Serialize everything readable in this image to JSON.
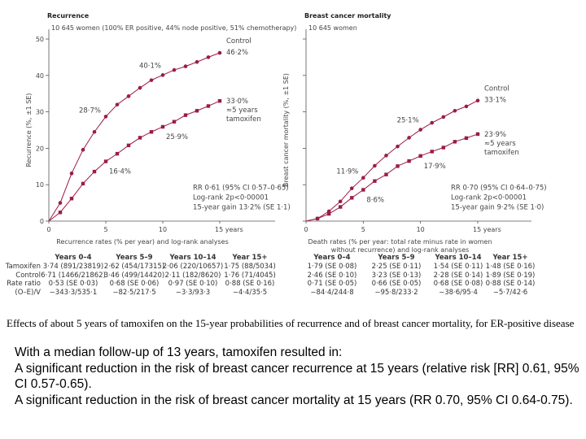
{
  "colors": {
    "series": "#9b1b4a",
    "axis": "#555555"
  },
  "chart_data": [
    {
      "type": "line",
      "title": "Recurrence",
      "subtitle": "10 645 women (100% ER positive, 44% node positive, 51% chemotherapy)",
      "xlabel": "Recurrence rates (% per year) and log-rank analyses",
      "ylabel": "Recurrence (%, ±1 SE)",
      "xlim": [
        0,
        15
      ],
      "ylim": [
        0,
        50
      ],
      "xticks": [
        "0",
        "5",
        "10",
        "15 years"
      ],
      "yticks": [
        "0",
        "10",
        "20",
        "30",
        "40",
        "50"
      ],
      "x": [
        0,
        1,
        2,
        3,
        4,
        5,
        6,
        7,
        8,
        9,
        10,
        11,
        12,
        13,
        14,
        15
      ],
      "series": [
        {
          "name": "Control",
          "values": [
            0,
            5.0,
            13.1,
            19.6,
            24.5,
            28.7,
            32.0,
            34.3,
            36.6,
            38.7,
            40.1,
            41.5,
            42.5,
            43.7,
            45.0,
            46.2
          ]
        },
        {
          "name": "≈5 years tamoxifen",
          "values": [
            0,
            2.4,
            6.2,
            10.3,
            13.6,
            16.4,
            18.5,
            20.8,
            22.9,
            24.5,
            25.9,
            27.3,
            29.1,
            30.3,
            31.6,
            33.0
          ]
        }
      ],
      "labels": {
        "control_name": "Control",
        "control_end": "46·2%",
        "ctrl5": "28·7%",
        "ctrl10": "40·1%",
        "tam_end": "33·0%",
        "tam_name1": "≈5 years",
        "tam_name2": "tamoxifen",
        "tam5": "16·4%",
        "tam10": "25·9%"
      },
      "stats": [
        "RR 0·61 (95% CI 0·57–0·65)",
        "Log-rank 2p<0·00001",
        "15-year gain 13·2% (SE 1·1)"
      ]
    },
    {
      "type": "line",
      "title": "Breast cancer mortality",
      "subtitle": "10 645 women",
      "xlabel": "Death rates (% per year: total rate minus rate in women",
      "xlabel2": "without recurrence) and log-rank analyses",
      "ylabel": "Breast cancer mortality (%, ±1 SE)",
      "xlim": [
        0,
        15
      ],
      "ylim": [
        0,
        50
      ],
      "xticks": [
        "0",
        "5",
        "10",
        "15 years"
      ],
      "yticks": [
        "",
        "",
        "",
        "",
        "",
        ""
      ],
      "x": [
        0,
        1,
        2,
        3,
        4,
        5,
        6,
        7,
        8,
        9,
        10,
        11,
        12,
        13,
        14,
        15
      ],
      "series": [
        {
          "name": "Control",
          "values": [
            0,
            0.7,
            2.7,
            5.4,
            9.0,
            11.9,
            15.2,
            18.0,
            20.5,
            22.9,
            25.1,
            27.0,
            28.6,
            30.3,
            31.5,
            33.1
          ]
        },
        {
          "name": "≈5 years tamoxifen",
          "values": [
            0,
            0.7,
            2.0,
            3.9,
            6.4,
            8.6,
            11.0,
            12.8,
            15.1,
            16.5,
            17.9,
            19.1,
            20.2,
            21.8,
            22.8,
            23.9
          ]
        }
      ],
      "labels": {
        "control_name": "Control",
        "control_end": "33·1%",
        "ctrl5": "11·9%",
        "ctrl10": "25·1%",
        "tam_end": "23·9%",
        "tam_name1": "≈5 years",
        "tam_name2": "tamoxifen",
        "tam5": "8·6%",
        "tam10": "17·9%"
      },
      "stats": [
        "RR 0·70 (95% CI 0·64–0·75)",
        "Log-rank 2p<0·00001",
        "15-year gain 9·2% (SE 1·0)"
      ]
    }
  ],
  "table_left": {
    "headers": [
      "Years 0–4",
      "Years 5–9",
      "Years 10–14",
      "Year 15+"
    ],
    "row_labels": [
      "Tamoxifen",
      "Control",
      "Rate ratio",
      "(O–E)/V"
    ],
    "rows": [
      [
        "3·74 (891/23819)",
        "2·62 (454/17315)",
        "2·06 (220/10657)",
        "1·75 (88/5034)"
      ],
      [
        "6·71 (1466/21862)",
        "3·46 (499/14420)",
        "2·11 (182/8620)",
        "1·76 (71/4045)"
      ],
      [
        "0·53 (SE 0·03)",
        "0·68 (SE 0·06)",
        "0·97 (SE 0·10)",
        "0·88 (SE 0·16)"
      ],
      [
        "−343·3/535·1",
        "−82·5/217·5",
        "−3·3/93·3",
        "−4·4/35·5"
      ]
    ]
  },
  "table_right": {
    "headers": [
      "Years 0–4",
      "Years 5–9",
      "Years 10–14",
      "Year 15+"
    ],
    "rows": [
      [
        "1·79 (SE 0·08)",
        "2·25 (SE 0·11)",
        "1·54 (SE 0·11)",
        "1·48 (SE 0·16)"
      ],
      [
        "2·46 (SE 0·10)",
        "3·23 (SE 0·13)",
        "2·28 (SE 0·14)",
        "1·89 (SE 0·19)"
      ],
      [
        "0·71 (SE 0·05)",
        "0·66 (SE 0·05)",
        "0·68 (SE 0·08)",
        "0·88 (SE 0·14)"
      ],
      [
        "−84·4/244·8",
        "−95·8/233·2",
        "−38·6/95·4",
        "−5·7/42·6"
      ]
    ]
  },
  "caption": "Effects of about 5 years of tamoxifen on the 15-year probabilities of recurrence and of breast cancer mortality, for ER-positive disease",
  "body": [
    "With a median follow-up of 13 years, tamoxifen resulted in:",
    "A significant reduction in the risk of breast cancer recurrence at 15 years (relative risk [RR] 0.61, 95% CI 0.57-0.65).",
    "A significant reduction in the risk of breast cancer mortality at 15 years (RR 0.70, 95% CI 0.64-0.75)."
  ]
}
